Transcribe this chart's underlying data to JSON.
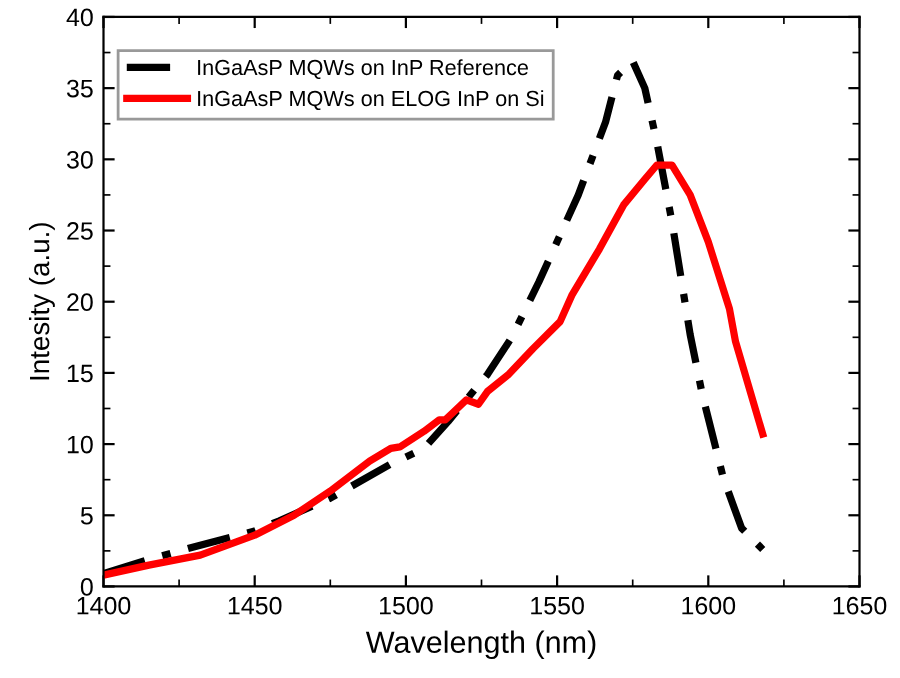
{
  "chart_data": {
    "type": "line",
    "xlabel": "Wavelength (nm)",
    "ylabel": "Intesity (a.u.)",
    "xlim": [
      1400,
      1650
    ],
    "xticks": [
      1400,
      1450,
      1500,
      1550,
      1600,
      1650
    ],
    "ylim": [
      0,
      40
    ],
    "yticks": [
      0,
      5,
      10,
      15,
      20,
      25,
      30,
      35,
      40
    ],
    "grid": false,
    "legend": "top left",
    "series": [
      {
        "name": "InGaAsP MQWs on InP Reference",
        "color": "#000000",
        "line_style": "dashdot",
        "x": [
          1400,
          1415,
          1432,
          1450,
          1458,
          1475,
          1495,
          1506,
          1514,
          1527,
          1535,
          1544,
          1557,
          1566,
          1570,
          1575,
          1579,
          1583,
          1588,
          1594,
          1598,
          1605,
          1611,
          1618
        ],
        "values": [
          0.9,
          1.9,
          2.9,
          3.9,
          4.6,
          6.2,
          8.6,
          9.7,
          11.6,
          14.9,
          17.5,
          21.4,
          27.5,
          32.6,
          35.9,
          36.9,
          35,
          31.2,
          25.6,
          17.7,
          13.5,
          7.6,
          4.1,
          2.6
        ]
      },
      {
        "name": "InGaAsP MQWs on ELOG InP on Si",
        "color": "#ff0000",
        "line_style": "solid",
        "x": [
          1400,
          1415,
          1432,
          1450,
          1463,
          1475,
          1488,
          1495,
          1498,
          1506,
          1511,
          1513,
          1516,
          1520,
          1524,
          1527,
          1534,
          1542,
          1551,
          1555,
          1564,
          1572,
          1579,
          1583,
          1588,
          1594,
          1600,
          1607,
          1609,
          1618
        ],
        "values": [
          0.8,
          1.5,
          2.2,
          3.6,
          5.0,
          6.7,
          8.8,
          9.7,
          9.8,
          10.9,
          11.7,
          11.7,
          12.3,
          13.1,
          12.8,
          13.7,
          14.9,
          16.7,
          18.6,
          20.5,
          23.7,
          26.8,
          28.6,
          29.6,
          29.6,
          27.5,
          24.2,
          19.5,
          17.2,
          10.7
        ]
      }
    ]
  }
}
